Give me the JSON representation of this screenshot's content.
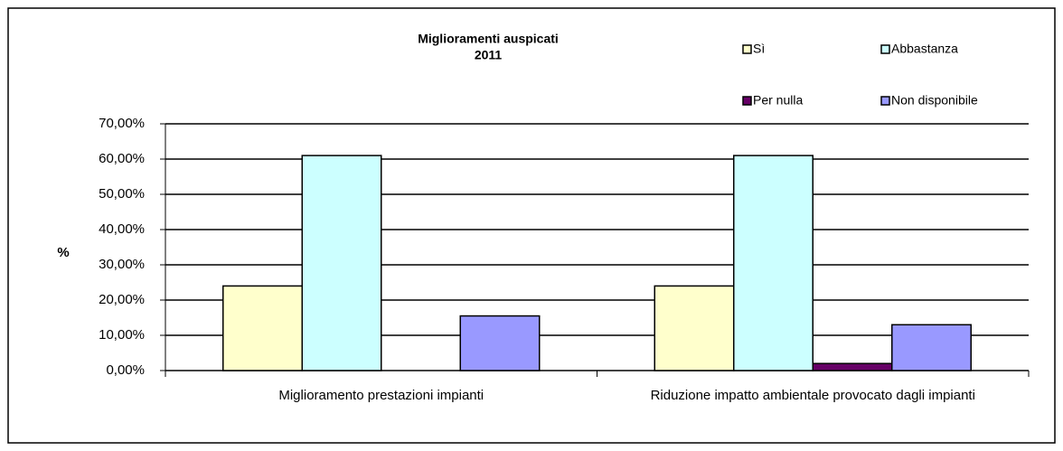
{
  "chart_data": {
    "type": "bar",
    "title": "Miglioramenti auspicati",
    "subtitle": "2011",
    "y_label": "%",
    "categories": [
      "Miglioramento prestazioni impianti",
      "Riduzione impatto ambientale provocato dagli impianti"
    ],
    "series": [
      {
        "name": "Sì",
        "color": "#ffffcc",
        "values": [
          24,
          24
        ]
      },
      {
        "name": "Abbastanza",
        "color": "#ccffff",
        "values": [
          61,
          61
        ]
      },
      {
        "name": "Per nulla",
        "color": "#660066",
        "values": [
          0,
          2
        ]
      },
      {
        "name": "Non disponibile",
        "color": "#9999ff",
        "values": [
          15.5,
          13
        ]
      }
    ],
    "ylim": [
      0,
      70
    ],
    "yticks": [
      {
        "value": 0,
        "label": "0,00%"
      },
      {
        "value": 10,
        "label": "10,00%"
      },
      {
        "value": 20,
        "label": "20,00%"
      },
      {
        "value": 30,
        "label": "30,00%"
      },
      {
        "value": 40,
        "label": "40,00%"
      },
      {
        "value": 50,
        "label": "50,00%"
      },
      {
        "value": 60,
        "label": "60,00%"
      },
      {
        "value": 70,
        "label": "70,00%"
      }
    ],
    "grid": true
  }
}
